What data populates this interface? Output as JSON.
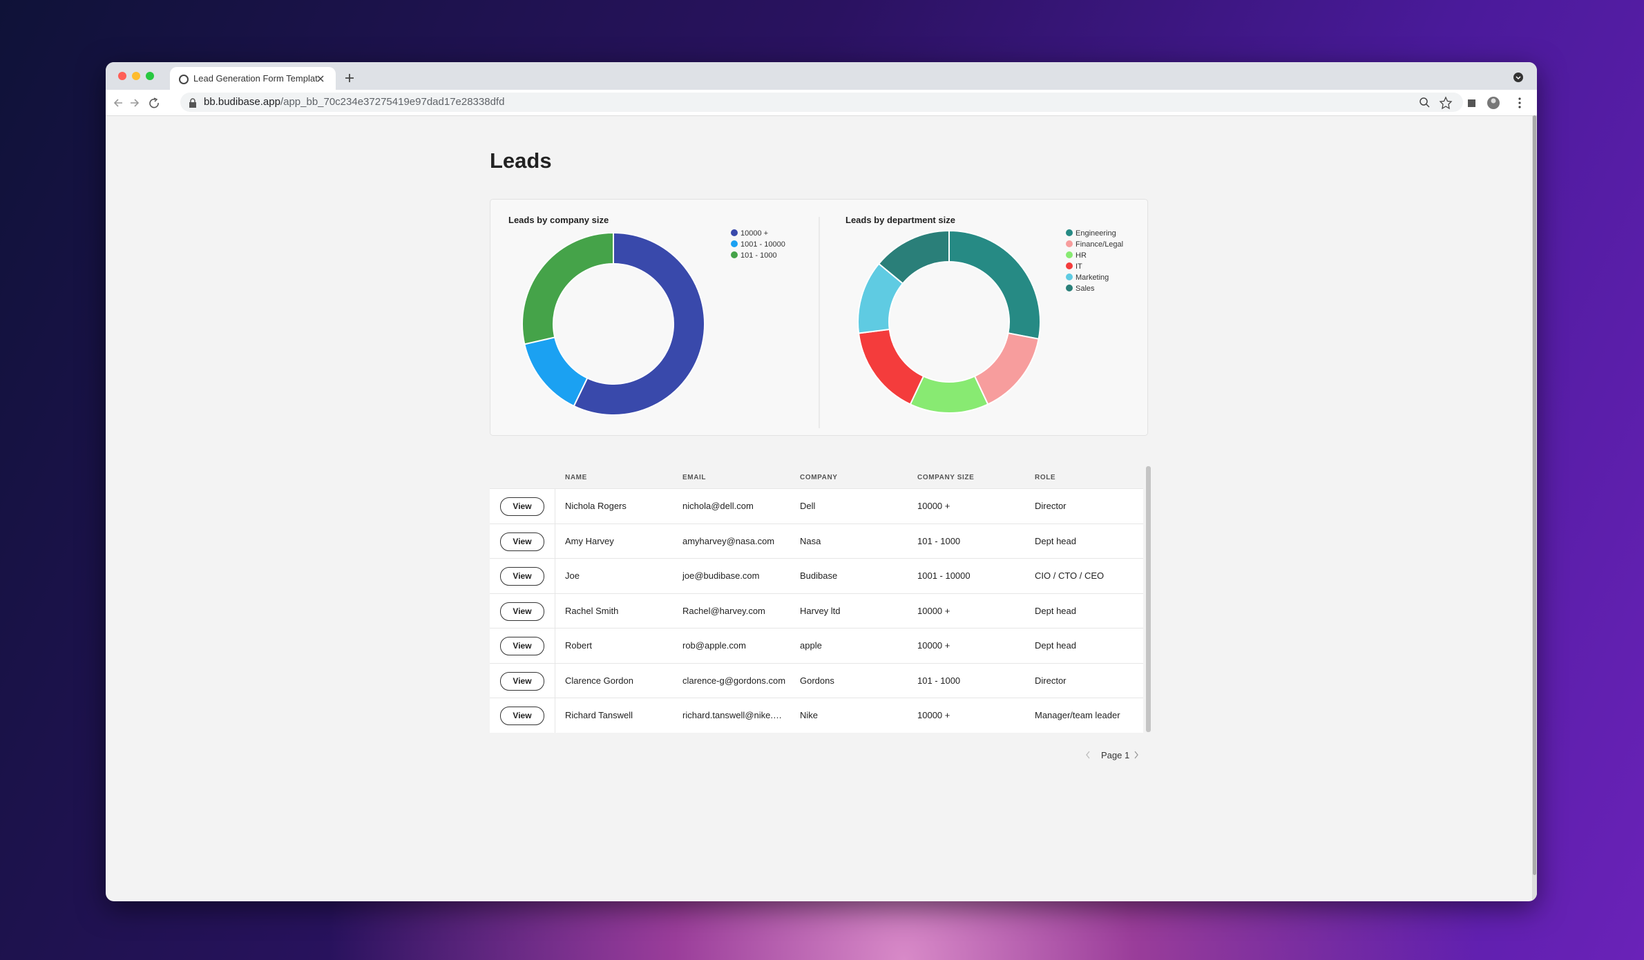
{
  "browser": {
    "tab_title": "Lead Generation Form Templat",
    "url_host": "bb.budibase.app",
    "url_path": "/app_bb_70c234e37275419e97dad17e28338dfd"
  },
  "page": {
    "title": "Leads"
  },
  "charts": [
    {
      "type": "pie",
      "title": "Leads by company size",
      "categories": [
        "10000 +",
        "1001 - 10000",
        "101 - 1000"
      ],
      "values": [
        4,
        1,
        2
      ],
      "colors": [
        "#3949ab",
        "#1ba1f2",
        "#45a349"
      ]
    },
    {
      "type": "pie",
      "title": "Leads by department size",
      "categories": [
        "Engineering",
        "Finance/Legal",
        "HR",
        "IT",
        "Marketing",
        "Sales"
      ],
      "values": [
        28,
        15,
        14,
        16,
        13,
        14
      ],
      "colors": [
        "#268a84",
        "#f79d9d",
        "#88ea72",
        "#f43c3c",
        "#5fcbe2",
        "#2a7f79"
      ]
    }
  ],
  "table": {
    "action_label": "View",
    "columns": [
      "NAME",
      "EMAIL",
      "COMPANY",
      "COMPANY SIZE",
      "ROLE"
    ],
    "rows": [
      [
        "Nichola Rogers",
        "nichola@dell.com",
        "Dell",
        "10000 +",
        "Director"
      ],
      [
        "Amy Harvey",
        "amyharvey@nasa.com",
        "Nasa",
        "101 - 1000",
        "Dept head"
      ],
      [
        "Joe",
        "joe@budibase.com",
        "Budibase",
        "1001 - 10000",
        "CIO / CTO / CEO"
      ],
      [
        "Rachel Smith",
        "Rachel@harvey.com",
        "Harvey ltd",
        "10000 +",
        "Dept head"
      ],
      [
        "Robert",
        "rob@apple.com",
        "apple",
        "10000 +",
        "Dept head"
      ],
      [
        "Clarence Gordon",
        "clarence-g@gordons.com",
        "Gordons",
        "101 - 1000",
        "Director"
      ],
      [
        "Richard Tanswell",
        "richard.tanswell@nike.…",
        "Nike",
        "10000 +",
        "Manager/team leader"
      ]
    ]
  },
  "pagination": {
    "label": "Page 1"
  }
}
